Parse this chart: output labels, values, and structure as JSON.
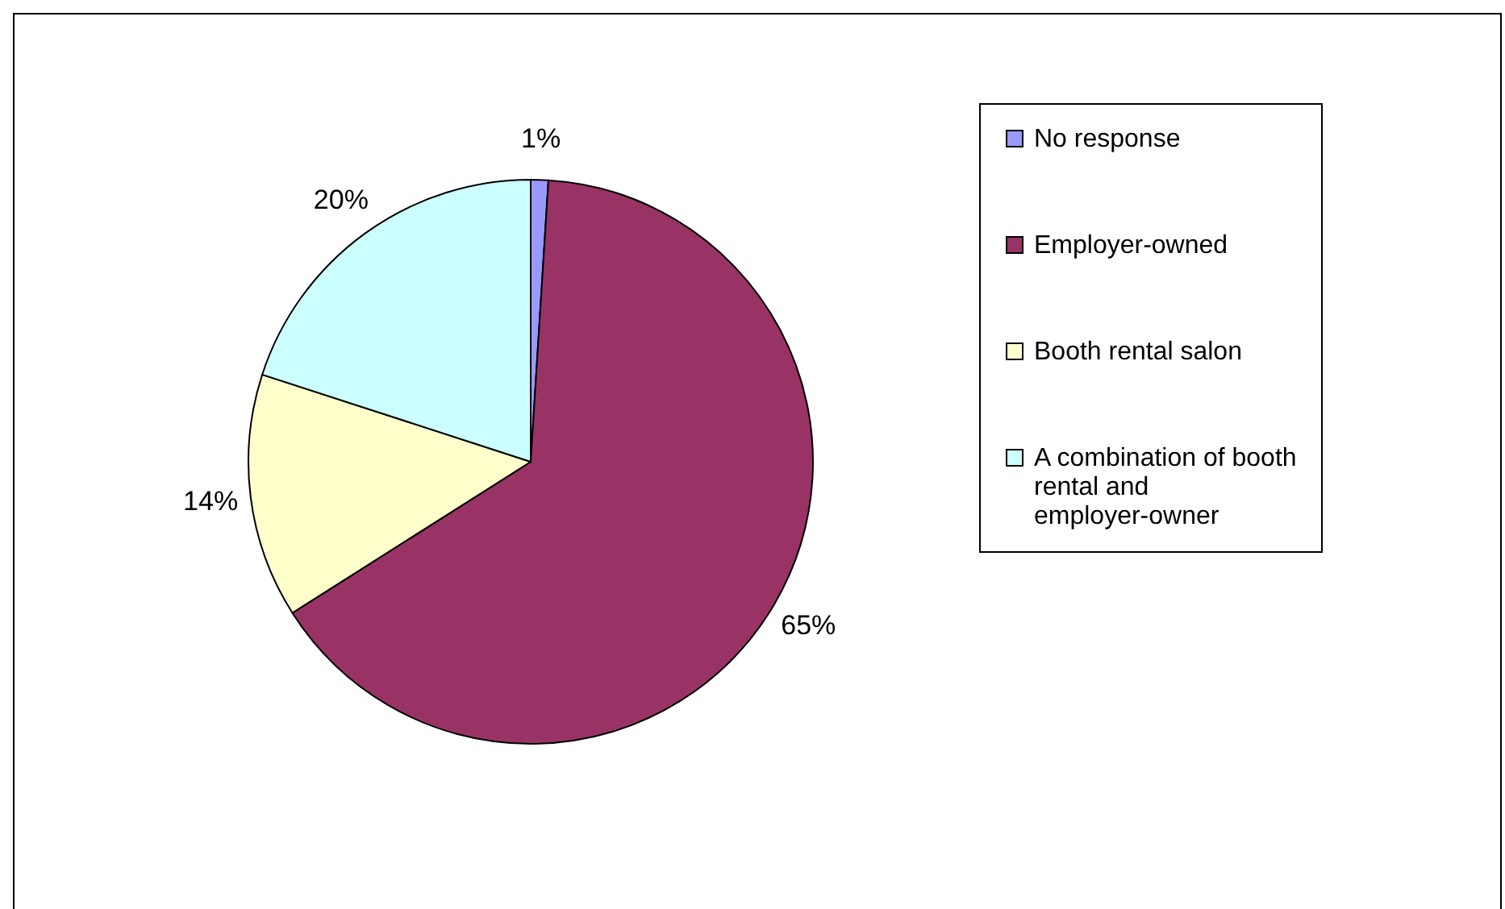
{
  "chart_data": {
    "type": "pie",
    "categories": [
      "No response",
      "Employer-owned",
      "Booth rental salon",
      "A combination of booth rental and employer-owner"
    ],
    "values": [
      1,
      65,
      14,
      20
    ],
    "colors": [
      "#9999ff",
      "#993366",
      "#ffffcc",
      "#ccffff"
    ],
    "value_labels": [
      "1%",
      "65%",
      "14%",
      "20%"
    ],
    "legend": "right"
  }
}
